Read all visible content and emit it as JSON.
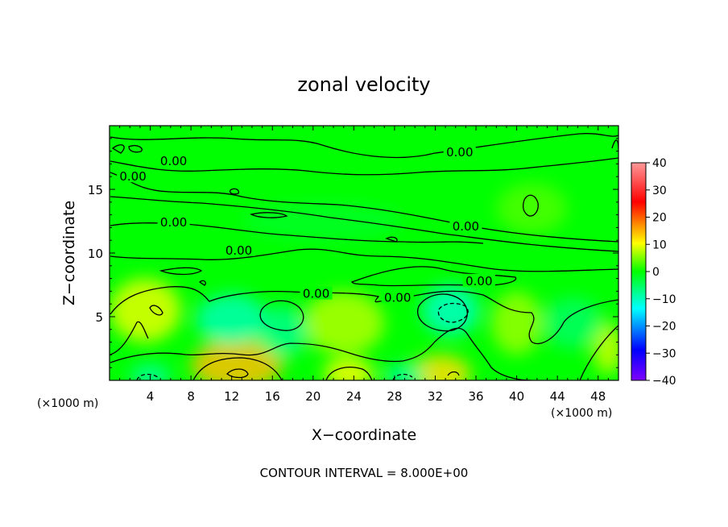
{
  "chart_data": {
    "type": "heatmap",
    "title": "zonal velocity",
    "xlabel": "X−coordinate",
    "ylabel": "Z−coordinate",
    "x_unit_left": "(×1000 m)",
    "x_unit_right": "(×1000 m)",
    "footer": "CONTOUR INTERVAL = 8.000E+00",
    "xlim": [
      0,
      50
    ],
    "ylim": [
      0,
      20
    ],
    "x_ticks": [
      4,
      8,
      12,
      16,
      20,
      24,
      28,
      32,
      36,
      40,
      44,
      48
    ],
    "x_tick_labels": [
      "4",
      "8",
      "12",
      "16",
      "20",
      "24",
      "28",
      "32",
      "36",
      "40",
      "44",
      "48"
    ],
    "y_ticks": [
      5,
      10,
      15
    ],
    "y_tick_labels": [
      "5",
      "10",
      "15"
    ],
    "colorbar": {
      "range": [
        -40,
        40
      ],
      "ticks": [
        -40,
        -30,
        -20,
        -10,
        0,
        10,
        20,
        30,
        40
      ],
      "tick_labels": [
        "−40",
        "−30",
        "−20",
        "−10",
        "0",
        "10",
        "20",
        "30",
        "40"
      ],
      "colors": [
        "#7f00ff",
        "#0000ff",
        "#00ffff",
        "#00ff00",
        "#ffff00",
        "#ff0000",
        "#ff8888"
      ]
    },
    "contour_levels": [
      -8,
      0,
      8
    ],
    "contour_labels": [
      {
        "text": "0.00",
        "x": 6.3,
        "z": 17.2
      },
      {
        "text": "0.00",
        "x": 2.3,
        "z": 16.0
      },
      {
        "text": "0.00",
        "x": 6.3,
        "z": 12.4
      },
      {
        "text": "0.00",
        "x": 12.7,
        "z": 10.2
      },
      {
        "text": "0.00",
        "x": 20.3,
        "z": 6.8
      },
      {
        "text": "0.00",
        "x": 28.3,
        "z": 6.5
      },
      {
        "text": "0.00",
        "x": 34.4,
        "z": 17.9
      },
      {
        "text": "0.00",
        "x": 35.0,
        "z": 12.1
      },
      {
        "text": "0.00",
        "x": 36.3,
        "z": 7.8
      }
    ],
    "field": {
      "background_value": 0,
      "features": [
        {
          "x": 3.5,
          "z": 5.5,
          "rx": 3.5,
          "rz": 2.5,
          "value": 9
        },
        {
          "x": 12.5,
          "z": 1.2,
          "rx": 4.5,
          "rz": 2.0,
          "value": 14
        },
        {
          "x": 23.5,
          "z": 0.5,
          "rx": 2.5,
          "rz": 1.2,
          "value": 10
        },
        {
          "x": 23.0,
          "z": 4.5,
          "rx": 4.0,
          "rz": 2.5,
          "value": 7
        },
        {
          "x": 32.5,
          "z": 0.5,
          "rx": 3.0,
          "rz": 1.5,
          "value": 12
        },
        {
          "x": 40.0,
          "z": 4.5,
          "rx": 2.5,
          "rz": 2.5,
          "value": 6
        },
        {
          "x": 49.0,
          "z": 2.5,
          "rx": 1.5,
          "rz": 2.0,
          "value": 8
        },
        {
          "x": 12.0,
          "z": 4.8,
          "rx": 3.5,
          "rz": 2.0,
          "value": -9
        },
        {
          "x": 17.0,
          "z": 3.8,
          "rx": 2.5,
          "rz": 2.0,
          "value": -7
        },
        {
          "x": 4.0,
          "z": 0.3,
          "rx": 2.0,
          "rz": 1.0,
          "value": -8
        },
        {
          "x": 29.0,
          "z": 0.3,
          "rx": 2.0,
          "rz": 1.0,
          "value": -8
        },
        {
          "x": 33.5,
          "z": 5.5,
          "rx": 2.8,
          "rz": 2.0,
          "value": -10
        },
        {
          "x": 45.5,
          "z": 4.5,
          "rx": 3.0,
          "rz": 2.0,
          "value": -5
        },
        {
          "x": 21.0,
          "z": 12.5,
          "rx": 8.0,
          "rz": 1.5,
          "value": -2
        },
        {
          "x": 41.5,
          "z": 13.5,
          "rx": 3.5,
          "rz": 2.0,
          "value": 3
        }
      ]
    }
  }
}
